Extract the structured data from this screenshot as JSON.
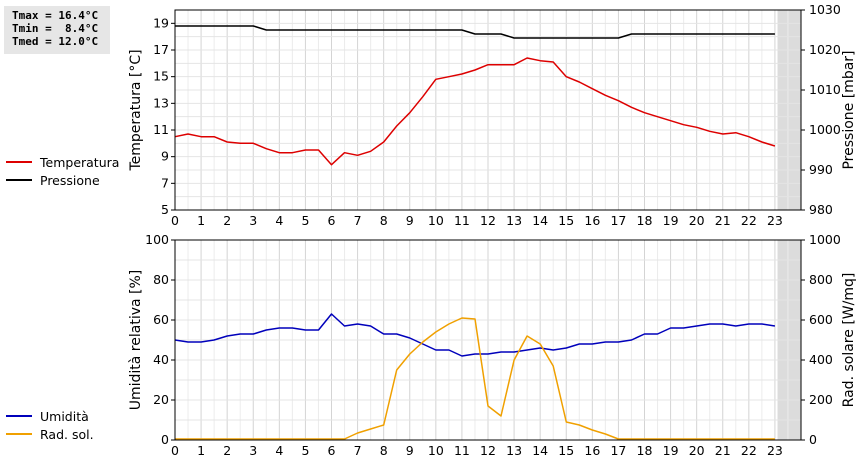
{
  "stats": {
    "tmax": "Tmax = 16.4°C",
    "tmin": "Tmin =  8.4°C",
    "tmed": "Tmed = 12.0°C"
  },
  "legend_top": [
    {
      "label": "Temperatura",
      "color": "#dd0000"
    },
    {
      "label": "Pressione",
      "color": "#000000"
    }
  ],
  "legend_bottom": [
    {
      "label": "Umidità",
      "color": "#0000bb"
    },
    {
      "label": "Rad. sol.",
      "color": "#f0a000"
    }
  ],
  "chart_data": [
    {
      "type": "line",
      "x_ticks": [
        0,
        1,
        2,
        3,
        4,
        5,
        6,
        7,
        8,
        9,
        10,
        11,
        12,
        13,
        14,
        15,
        16,
        17,
        18,
        19,
        20,
        21,
        22,
        23
      ],
      "xlim": [
        0,
        24
      ],
      "ylabel": "Temperatura [°C]",
      "ylim": [
        5,
        20
      ],
      "y_ticks": [
        5,
        7,
        9,
        11,
        13,
        15,
        17,
        19
      ],
      "y2label": "Pressione [mbar]",
      "y2lim": [
        980,
        1030
      ],
      "y2_ticks": [
        980,
        990,
        1000,
        1010,
        1020,
        1030
      ],
      "grid": true,
      "shaded_region": [
        23.1,
        24
      ],
      "series": [
        {
          "name": "Temperatura",
          "axis": "left",
          "color": "#dd0000",
          "x": [
            0,
            0.5,
            1,
            1.5,
            2,
            2.5,
            3,
            3.5,
            4,
            4.5,
            5,
            5.5,
            6,
            6.5,
            7,
            7.5,
            8,
            8.5,
            9,
            9.5,
            10,
            10.5,
            11,
            11.5,
            12,
            12.5,
            13,
            13.5,
            14,
            14.5,
            15,
            15.5,
            16,
            16.5,
            17,
            17.5,
            18,
            18.5,
            19,
            19.5,
            20,
            20.5,
            21,
            21.5,
            22,
            22.5,
            23
          ],
          "y": [
            10.5,
            10.7,
            10.5,
            10.5,
            10.1,
            10.0,
            10.0,
            9.6,
            9.3,
            9.3,
            9.5,
            9.5,
            8.4,
            9.3,
            9.1,
            9.4,
            10.1,
            11.3,
            12.3,
            13.5,
            14.8,
            15.0,
            15.2,
            15.5,
            15.9,
            15.9,
            15.9,
            16.4,
            16.2,
            16.1,
            15.0,
            14.6,
            14.1,
            13.6,
            13.2,
            12.7,
            12.3,
            12.0,
            11.7,
            11.4,
            11.2,
            10.9,
            10.7,
            10.8,
            10.5,
            10.1,
            9.8
          ]
        },
        {
          "name": "Pressione",
          "axis": "right",
          "color": "#000000",
          "x": [
            0,
            0.5,
            1,
            1.5,
            2,
            2.5,
            3,
            3.5,
            4,
            4.5,
            5,
            5.5,
            6,
            6.5,
            7,
            7.5,
            8,
            8.5,
            9,
            9.5,
            10,
            10.5,
            11,
            11.5,
            12,
            12.5,
            13,
            13.5,
            14,
            14.5,
            15,
            15.5,
            16,
            16.5,
            17,
            17.5,
            18,
            18.5,
            19,
            19.5,
            20,
            20.5,
            21,
            21.5,
            22,
            22.5,
            23
          ],
          "y": [
            1026,
            1026,
            1026,
            1026,
            1026,
            1026,
            1026,
            1025,
            1025,
            1025,
            1025,
            1025,
            1025,
            1025,
            1025,
            1025,
            1025,
            1025,
            1025,
            1025,
            1025,
            1025,
            1025,
            1024,
            1024,
            1024,
            1023,
            1023,
            1023,
            1023,
            1023,
            1023,
            1023,
            1023,
            1023,
            1024,
            1024,
            1024,
            1024,
            1024,
            1024,
            1024,
            1024,
            1024,
            1024,
            1024,
            1024
          ]
        }
      ]
    },
    {
      "type": "line",
      "x_ticks": [
        0,
        1,
        2,
        3,
        4,
        5,
        6,
        7,
        8,
        9,
        10,
        11,
        12,
        13,
        14,
        15,
        16,
        17,
        18,
        19,
        20,
        21,
        22,
        23
      ],
      "xlim": [
        0,
        24
      ],
      "ylabel": "Umidità relativa [%]",
      "ylim": [
        0,
        100
      ],
      "y_ticks": [
        0,
        20,
        40,
        60,
        80,
        100
      ],
      "y2label": "Rad. solare [W/mq]",
      "y2lim": [
        0,
        1000
      ],
      "y2_ticks": [
        0,
        200,
        400,
        600,
        800,
        1000
      ],
      "grid": true,
      "shaded_region": [
        23.1,
        24
      ],
      "series": [
        {
          "name": "Umidità",
          "axis": "left",
          "color": "#0000bb",
          "x": [
            0,
            0.5,
            1,
            1.5,
            2,
            2.5,
            3,
            3.5,
            4,
            4.5,
            5,
            5.5,
            6,
            6.5,
            7,
            7.5,
            8,
            8.5,
            9,
            9.5,
            10,
            10.5,
            11,
            11.5,
            12,
            12.5,
            13,
            13.5,
            14,
            14.5,
            15,
            15.5,
            16,
            16.5,
            17,
            17.5,
            18,
            18.5,
            19,
            19.5,
            20,
            20.5,
            21,
            21.5,
            22,
            22.5,
            23
          ],
          "y": [
            50,
            49,
            49,
            50,
            52,
            53,
            53,
            55,
            56,
            56,
            55,
            55,
            63,
            57,
            58,
            57,
            53,
            53,
            51,
            48,
            45,
            45,
            42,
            43,
            43,
            44,
            44,
            45,
            46,
            45,
            46,
            48,
            48,
            49,
            49,
            50,
            53,
            53,
            56,
            56,
            57,
            58,
            58,
            57,
            58,
            58,
            57
          ]
        },
        {
          "name": "Rad. sol.",
          "axis": "right",
          "color": "#f0a000",
          "x": [
            0,
            1,
            2,
            3,
            4,
            5,
            6,
            6.5,
            7,
            7.5,
            8,
            8.5,
            9,
            9.5,
            10,
            10.5,
            11,
            11.5,
            12,
            12.5,
            13,
            13.5,
            14,
            14.5,
            15,
            15.5,
            16,
            16.5,
            17,
            18,
            19,
            20,
            21,
            22,
            23
          ],
          "y": [
            5,
            5,
            5,
            5,
            5,
            5,
            5,
            5,
            35,
            55,
            75,
            350,
            430,
            490,
            540,
            580,
            610,
            605,
            170,
            120,
            400,
            520,
            480,
            370,
            90,
            75,
            50,
            30,
            5,
            5,
            5,
            5,
            5,
            5,
            5
          ]
        }
      ]
    }
  ]
}
